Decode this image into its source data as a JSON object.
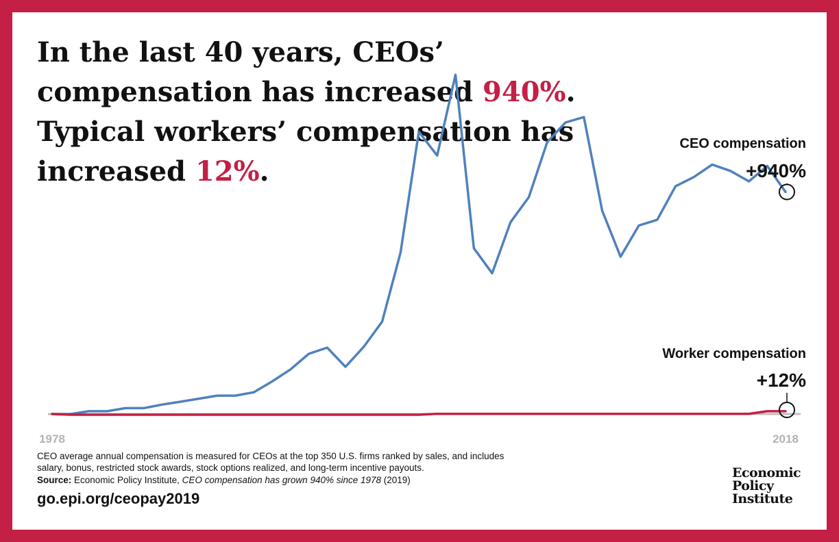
{
  "headline": {
    "part1": "In the last 40 years, CEOs’ compensation has increased ",
    "ceo_pct": "940%",
    "part2": ". Typical workers’ compensation has increased ",
    "worker_pct": "12%",
    "part3": "."
  },
  "footer": {
    "note": "CEO average annual compensation is measured for CEOs at the top 350 U.S. firms ranked by sales, and includes salary, bonus, restricted stock awards, stock options realized, and long-term incentive payouts.",
    "source_label": "Source:",
    "source_pre": " Economic Policy Institute, ",
    "source_title": "CEO compensation has grown 940% since 1978",
    "source_post": " (2019)",
    "url": "go.epi.org/ceopay2019"
  },
  "logo": {
    "line1": "Economic",
    "line2": "Policy",
    "line3": "Institute"
  },
  "colors": {
    "brand": "#c41f44",
    "ceo_line": "#4f81bd",
    "worker_line": "#c41f44",
    "baseline": "#bfbfbf",
    "tick_text": "#b3b3b3"
  },
  "chart_data": {
    "type": "line",
    "title": "",
    "xlabel": "",
    "ylabel": "",
    "x_tick_labels": [
      "1978",
      "2018"
    ],
    "x": [
      1978,
      1979,
      1980,
      1981,
      1982,
      1983,
      1984,
      1985,
      1986,
      1987,
      1988,
      1989,
      1990,
      1991,
      1992,
      1993,
      1994,
      1995,
      1996,
      1997,
      1998,
      1999,
      2000,
      2001,
      2002,
      2003,
      2004,
      2005,
      2006,
      2007,
      2008,
      2009,
      2010,
      2011,
      2012,
      2013,
      2014,
      2015,
      2016,
      2017,
      2018
    ],
    "ylim": [
      -10,
      1140
    ],
    "series": [
      {
        "name": "CEO compensation",
        "end_label": "+940%",
        "color": "#4f81bd",
        "values": [
          0,
          0,
          12,
          12,
          25,
          25,
          40,
          52,
          65,
          78,
          78,
          92,
          138,
          189,
          255,
          281,
          200,
          285,
          391,
          683,
          1195,
          1094,
          1436,
          702,
          596,
          812,
          918,
          1151,
          1234,
          1257,
          861,
          666,
          798,
          822,
          964,
          1003,
          1056,
          1029,
          985,
          1050,
          940
        ]
      },
      {
        "name": "Worker compensation",
        "end_label": "+12%",
        "color": "#c41f44",
        "values": [
          0,
          -3,
          -3,
          -3,
          -3,
          -3,
          -3,
          -3,
          -3,
          -3,
          -3,
          -3,
          -3,
          -3,
          -3,
          -3,
          -3,
          -3,
          -3,
          -3,
          -3,
          1,
          1,
          1,
          1,
          1,
          1,
          1,
          1,
          1,
          1,
          1,
          1,
          1,
          1,
          1,
          1,
          1,
          1,
          12,
          12
        ]
      }
    ]
  }
}
